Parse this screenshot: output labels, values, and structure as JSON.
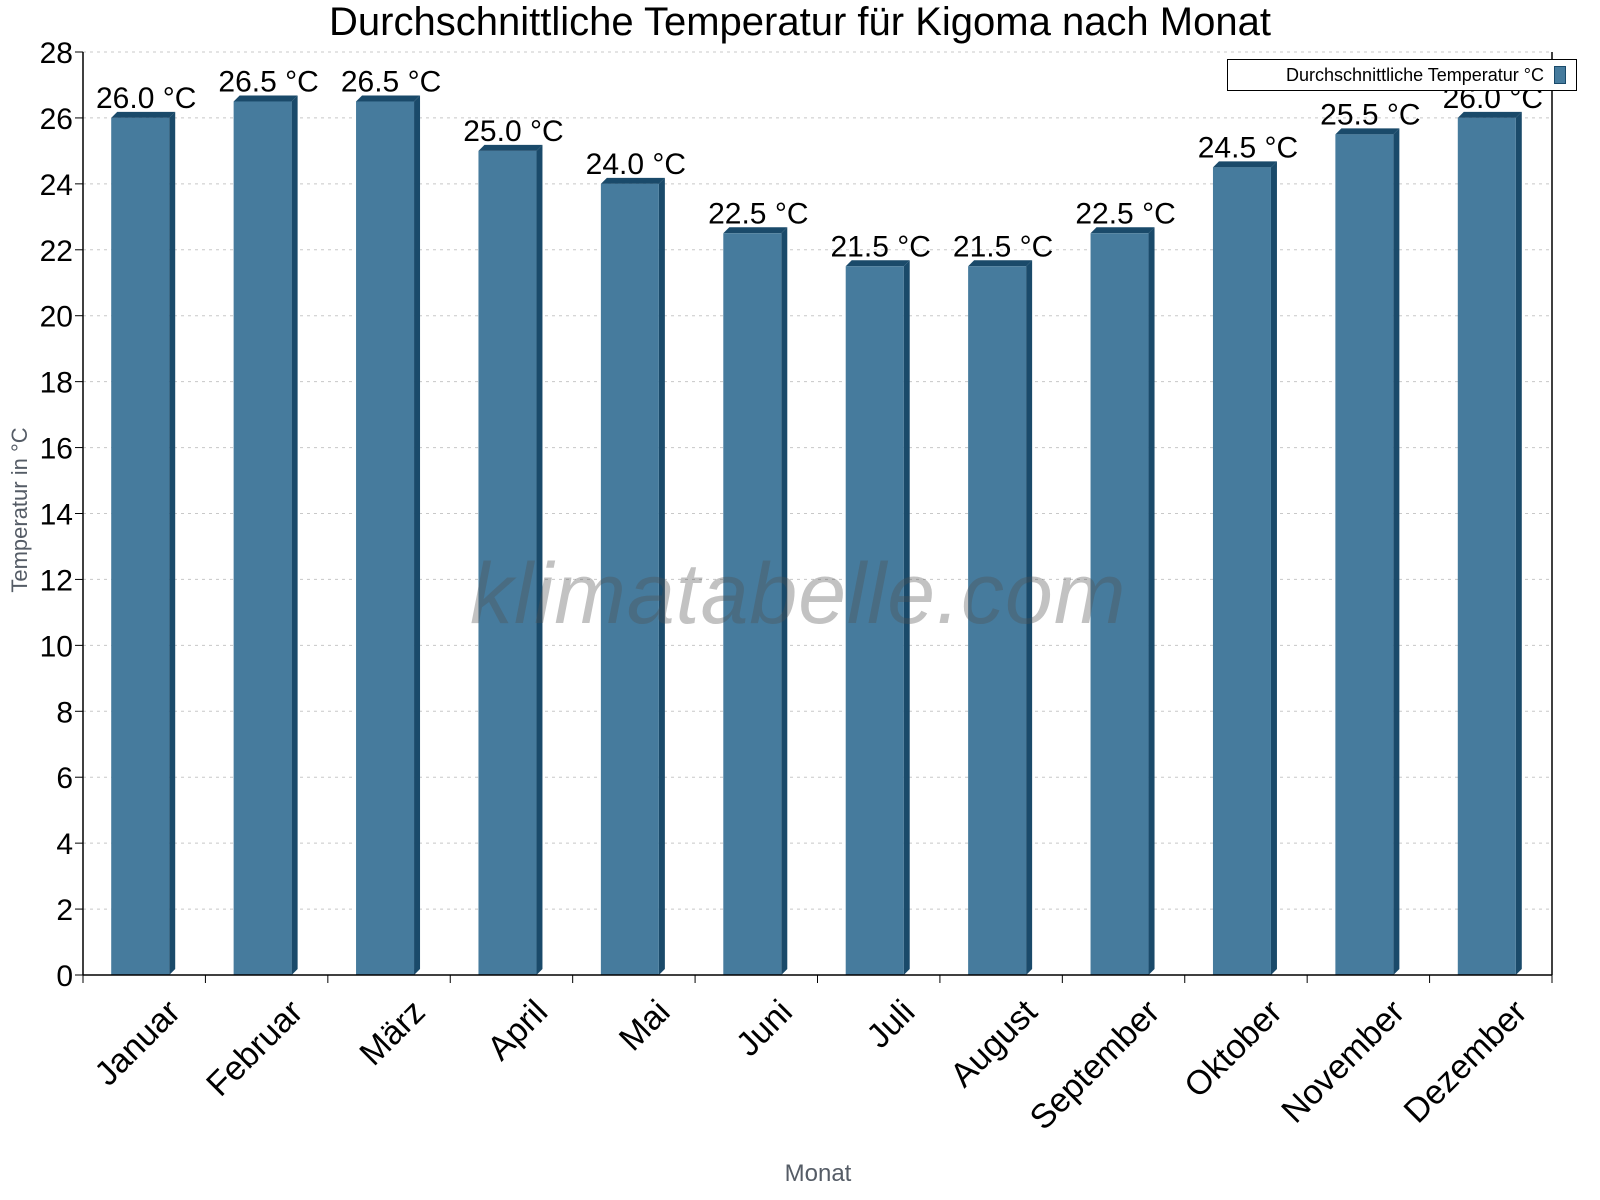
{
  "title": "Durchschnittliche Temperatur für Kigoma nach Monat",
  "legend": {
    "label": "Durchschnittliche Temperatur °C",
    "swatch_color": "#467b9d"
  },
  "axes": {
    "xlabel": "Monat",
    "ylabel": "Temperatur in °C"
  },
  "watermark": "klimatabelle.com",
  "colors": {
    "bar_front": "#467b9d",
    "bar_side": "#1a4a6a",
    "grid": "#c8c8c8",
    "axis": "#000000",
    "axis_title": "#555c66"
  },
  "chart_data": {
    "type": "bar",
    "title": "Durchschnittliche Temperatur für Kigoma nach Monat",
    "xlabel": "Monat",
    "ylabel": "Temperatur in °C",
    "categories": [
      "Januar",
      "Februar",
      "März",
      "April",
      "Mai",
      "Juni",
      "Juli",
      "August",
      "September",
      "Oktober",
      "November",
      "Dezember"
    ],
    "series": [
      {
        "name": "Durchschnittliche Temperatur °C",
        "values": [
          26.0,
          26.5,
          26.5,
          25.0,
          24.0,
          22.5,
          21.5,
          21.5,
          22.5,
          24.5,
          25.5,
          26.0
        ]
      }
    ],
    "data_labels": [
      "26.0 °C",
      "26.5 °C",
      "26.5 °C",
      "25.0 °C",
      "24.0 °C",
      "22.5 °C",
      "21.5 °C",
      "21.5 °C",
      "22.5 °C",
      "24.5 °C",
      "25.5 °C",
      "26.0 °C"
    ],
    "ylim": [
      0,
      28
    ],
    "yticks": [
      0,
      2,
      4,
      6,
      8,
      10,
      12,
      14,
      16,
      18,
      20,
      22,
      24,
      26,
      28
    ],
    "grid": true,
    "legend_position": "top-right"
  }
}
